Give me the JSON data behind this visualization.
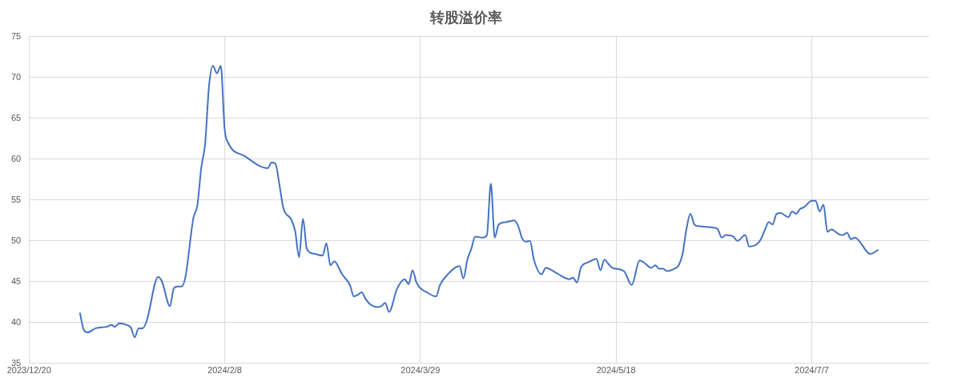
{
  "chart_data": {
    "type": "line",
    "title": "转股溢价率",
    "x": [
      "2024-01-02",
      "2024-01-03",
      "2024-01-04",
      "2024-01-06",
      "2024-01-09",
      "2024-01-10",
      "2024-01-11",
      "2024-01-12",
      "2024-01-14",
      "2024-01-15",
      "2024-01-16",
      "2024-01-17",
      "2024-01-18",
      "2024-01-19",
      "2024-01-22",
      "2024-01-23",
      "2024-01-25",
      "2024-01-26",
      "2024-01-27",
      "2024-01-28",
      "2024-01-29",
      "2024-01-31",
      "2024-02-01",
      "2024-02-02",
      "2024-02-03",
      "2024-02-04",
      "2024-02-05",
      "2024-02-06",
      "2024-02-07",
      "2024-02-08",
      "2024-02-09",
      "2024-02-13",
      "2024-02-19",
      "2024-02-20",
      "2024-02-21",
      "2024-02-22",
      "2024-02-23",
      "2024-02-25",
      "2024-02-26",
      "2024-02-27",
      "2024-02-28",
      "2024-02-29",
      "2024-03-02",
      "2024-03-04",
      "2024-03-05",
      "2024-03-06",
      "2024-03-07",
      "2024-03-09",
      "2024-03-11",
      "2024-03-12",
      "2024-03-13",
      "2024-03-14",
      "2024-03-15",
      "2024-03-16",
      "2024-03-18",
      "2024-03-19",
      "2024-03-20",
      "2024-03-21",
      "2024-03-23",
      "2024-03-25",
      "2024-03-26",
      "2024-03-27",
      "2024-03-28",
      "2024-03-31",
      "2024-04-02",
      "2024-04-03",
      "2024-04-05",
      "2024-04-08",
      "2024-04-09",
      "2024-04-10",
      "2024-04-11",
      "2024-04-12",
      "2024-04-14",
      "2024-04-15",
      "2024-04-16",
      "2024-04-17",
      "2024-04-18",
      "2024-04-20",
      "2024-04-22",
      "2024-04-23",
      "2024-04-24",
      "2024-04-25",
      "2024-04-26",
      "2024-04-27",
      "2024-04-29",
      "2024-04-30",
      "2024-05-03",
      "2024-05-06",
      "2024-05-07",
      "2024-05-08",
      "2024-05-09",
      "2024-05-11",
      "2024-05-13",
      "2024-05-14",
      "2024-05-15",
      "2024-05-16",
      "2024-05-17",
      "2024-05-20",
      "2024-05-22",
      "2024-05-24",
      "2024-05-25",
      "2024-05-27",
      "2024-05-28",
      "2024-05-29",
      "2024-05-30",
      "2024-05-31",
      "2024-06-02",
      "2024-06-03",
      "2024-06-04",
      "2024-06-05",
      "2024-06-06",
      "2024-06-07",
      "2024-06-08",
      "2024-06-12",
      "2024-06-13",
      "2024-06-14",
      "2024-06-15",
      "2024-06-17",
      "2024-06-18",
      "2024-06-20",
      "2024-06-21",
      "2024-06-23",
      "2024-06-24",
      "2024-06-25",
      "2024-06-26",
      "2024-06-27",
      "2024-06-28",
      "2024-06-29",
      "2024-07-01",
      "2024-07-02",
      "2024-07-03",
      "2024-07-04",
      "2024-07-05",
      "2024-07-07",
      "2024-07-08",
      "2024-07-09",
      "2024-07-10",
      "2024-07-11",
      "2024-07-12",
      "2024-07-14",
      "2024-07-15",
      "2024-07-16",
      "2024-07-17",
      "2024-07-18",
      "2024-07-22",
      "2024-07-24"
    ],
    "series": [
      {
        "color": "#4472c4",
        "values": [
          41.2,
          39.1,
          38.8,
          39.3,
          39.5,
          39.7,
          39.5,
          39.9,
          39.7,
          39.4,
          38.2,
          39.3,
          39.3,
          40.1,
          45.6,
          45.0,
          42.0,
          44.2,
          44.4,
          44.4,
          45.7,
          52.8,
          54.3,
          58.9,
          61.9,
          69.0,
          71.4,
          70.5,
          71.4,
          63.6,
          61.9,
          60.4,
          58.9,
          59.6,
          59.4,
          56.8,
          54.0,
          52.6,
          51.2,
          48.0,
          52.7,
          49.0,
          48.4,
          48.2,
          49.7,
          47.0,
          47.5,
          45.9,
          44.6,
          43.2,
          43.4,
          43.7,
          42.9,
          42.3,
          41.9,
          42.0,
          42.4,
          41.3,
          44.1,
          45.3,
          44.7,
          46.4,
          44.9,
          43.6,
          43.2,
          44.6,
          45.9,
          46.9,
          45.4,
          47.7,
          49.0,
          50.5,
          50.4,
          50.7,
          57.0,
          50.4,
          52.0,
          52.3,
          52.5,
          51.8,
          50.3,
          49.9,
          50.0,
          47.7,
          45.9,
          46.7,
          46.0,
          45.3,
          45.5,
          44.9,
          46.7,
          47.4,
          47.8,
          46.4,
          47.7,
          47.2,
          46.7,
          46.3,
          44.6,
          47.6,
          47.4,
          46.7,
          47.0,
          46.6,
          46.6,
          46.3,
          46.6,
          47.0,
          48.4,
          51.5,
          53.3,
          52.0,
          51.8,
          51.6,
          51.4,
          50.4,
          50.7,
          50.5,
          50.0,
          50.7,
          49.3,
          49.6,
          50.2,
          51.3,
          52.3,
          52.0,
          53.3,
          53.4,
          52.9,
          53.6,
          53.3,
          53.9,
          54.1,
          54.9,
          54.9,
          53.6,
          54.4,
          51.1,
          51.4,
          50.8,
          50.7,
          51.0,
          50.2,
          50.4,
          48.4,
          48.9
        ]
      }
    ],
    "xlim": [
      "2023-12-20",
      "2024-08-06"
    ],
    "xticks": [
      {
        "value": "2023-12-20",
        "label": "2023/12/20"
      },
      {
        "value": "2024-02-08",
        "label": "2024/2/8"
      },
      {
        "value": "2024-03-29",
        "label": "2024/3/29"
      },
      {
        "value": "2024-05-18",
        "label": "2024/5/18"
      },
      {
        "value": "2024-07-07",
        "label": "2024/7/7"
      }
    ],
    "ylim": [
      35,
      75
    ],
    "yticks": [
      35,
      40,
      45,
      50,
      55,
      60,
      65,
      70,
      75
    ],
    "grid": true,
    "legend": false,
    "marker": "none",
    "line_style": "solid"
  }
}
